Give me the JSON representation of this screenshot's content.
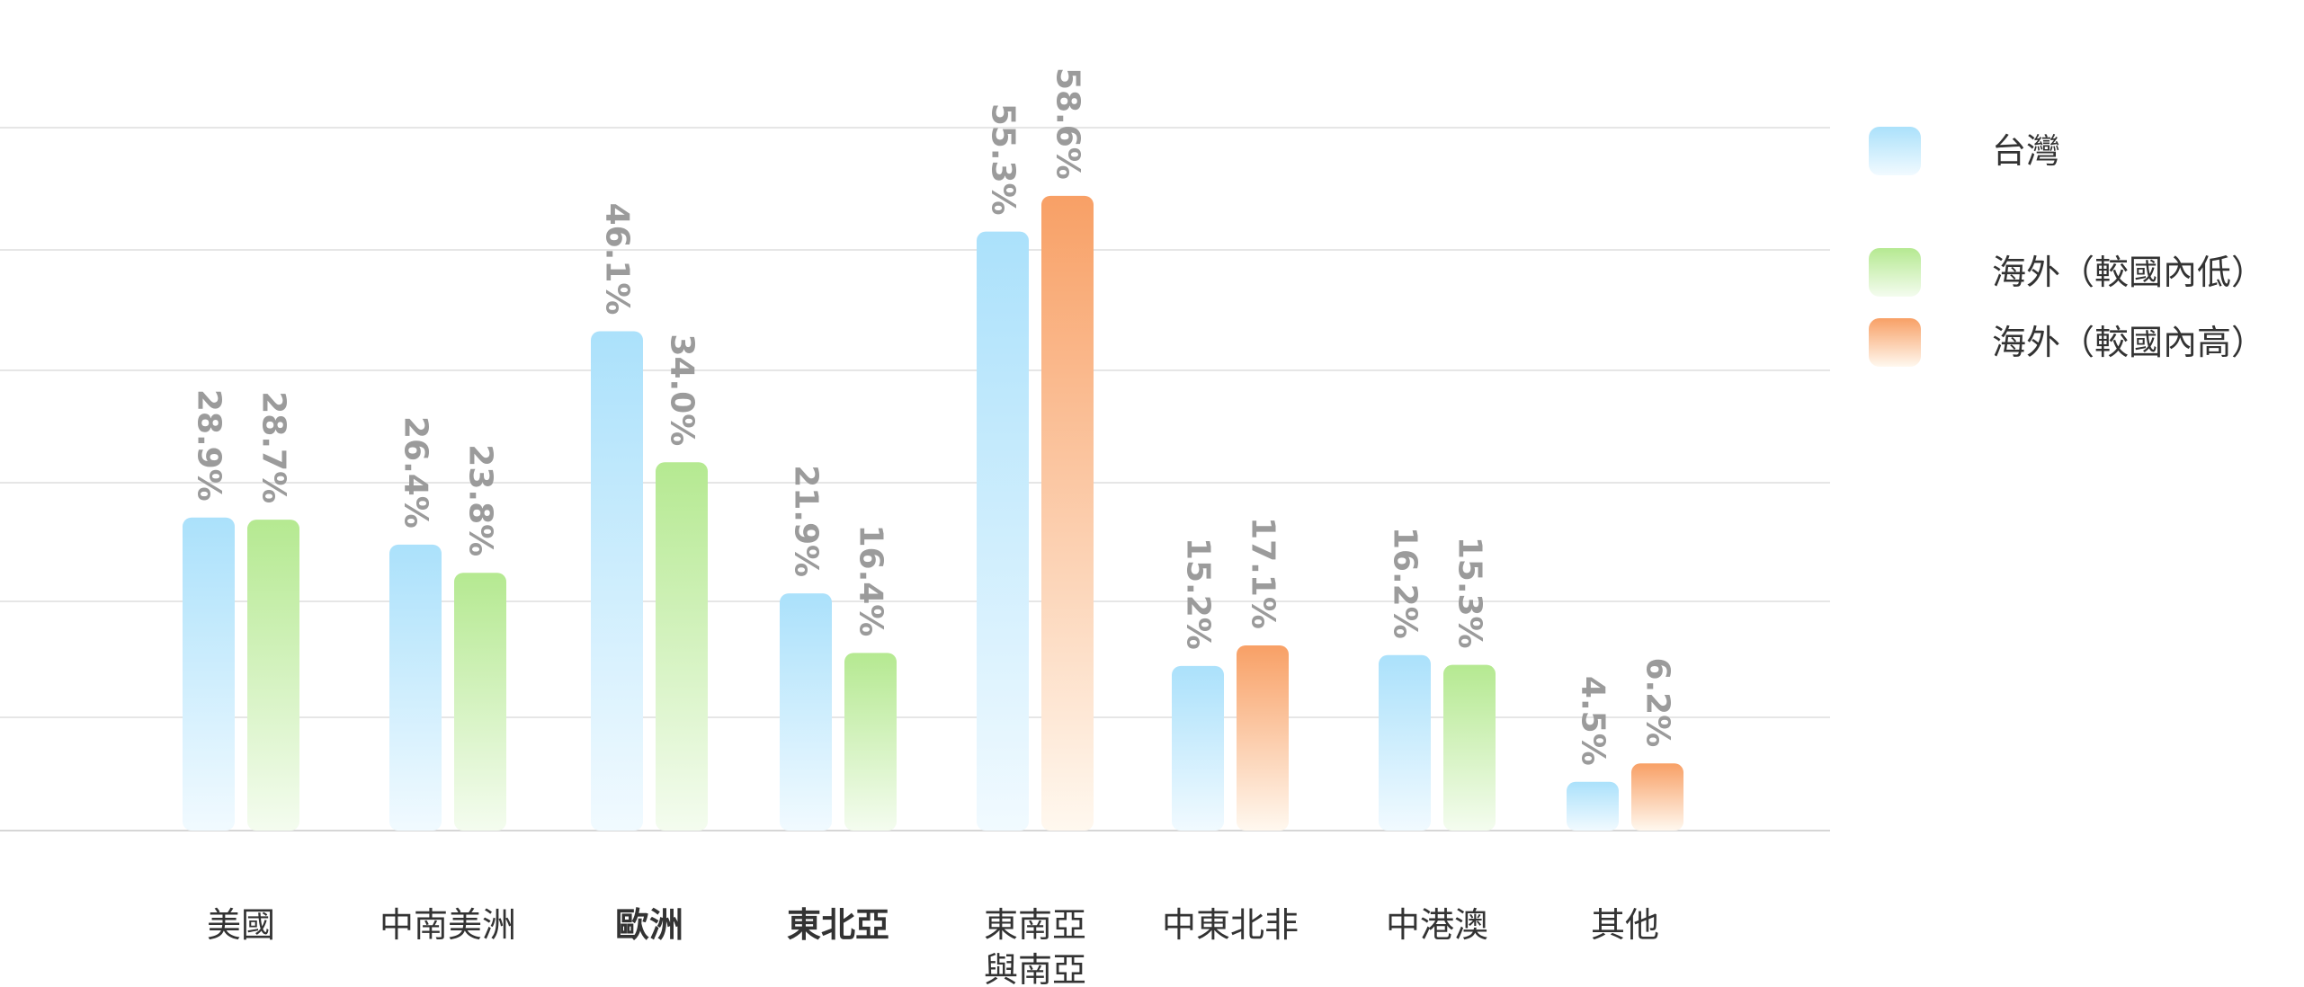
{
  "chart_data": {
    "type": "bar",
    "categories": [
      {
        "lines": [
          "美國"
        ],
        "bold": false
      },
      {
        "lines": [
          "中南美洲"
        ],
        "bold": false
      },
      {
        "lines": [
          "歐洲"
        ],
        "bold": true
      },
      {
        "lines": [
          "東北亞"
        ],
        "bold": true
      },
      {
        "lines": [
          "東南亞",
          "與南亞"
        ],
        "bold": false
      },
      {
        "lines": [
          "中東北非"
        ],
        "bold": false
      },
      {
        "lines": [
          "中港澳"
        ],
        "bold": false
      },
      {
        "lines": [
          "其他"
        ],
        "bold": false
      }
    ],
    "legend": [
      {
        "key": "taiwan",
        "label": "台灣",
        "color_top": "#abe1fb",
        "color_bottom": "#f1faff"
      },
      {
        "key": "overseas_low",
        "label": "海外（較國內低）",
        "color_top": "#b5e991",
        "color_bottom": "#f4fcef"
      },
      {
        "key": "overseas_high",
        "label": "海外（較國內高）",
        "color_top": "#f8a066",
        "color_bottom": "#fff8ef"
      }
    ],
    "bars": [
      [
        {
          "series": "taiwan",
          "value": 28.9,
          "label": "28.9%"
        },
        {
          "series": "overseas_low",
          "value": 28.7,
          "label": "28.7%"
        }
      ],
      [
        {
          "series": "taiwan",
          "value": 26.4,
          "label": "26.4%"
        },
        {
          "series": "overseas_low",
          "value": 23.8,
          "label": "23.8%"
        }
      ],
      [
        {
          "series": "taiwan",
          "value": 46.1,
          "label": "46.1%"
        },
        {
          "series": "overseas_low",
          "value": 34.0,
          "label": "34.0%"
        }
      ],
      [
        {
          "series": "taiwan",
          "value": 21.9,
          "label": "21.9%"
        },
        {
          "series": "overseas_low",
          "value": 16.4,
          "label": "16.4%"
        }
      ],
      [
        {
          "series": "taiwan",
          "value": 55.3,
          "label": "55.3%"
        },
        {
          "series": "overseas_high",
          "value": 58.6,
          "label": "58.6%"
        }
      ],
      [
        {
          "series": "taiwan",
          "value": 15.2,
          "label": "15.2%"
        },
        {
          "series": "overseas_high",
          "value": 17.1,
          "label": "17.1%"
        }
      ],
      [
        {
          "series": "taiwan",
          "value": 16.2,
          "label": "16.2%"
        },
        {
          "series": "overseas_low",
          "value": 15.3,
          "label": "15.3%"
        }
      ],
      [
        {
          "series": "taiwan",
          "value": 4.5,
          "label": "4.5%"
        },
        {
          "series": "overseas_high",
          "value": 6.2,
          "label": "6.2%"
        }
      ]
    ],
    "grid": true,
    "legend_position": "right"
  }
}
